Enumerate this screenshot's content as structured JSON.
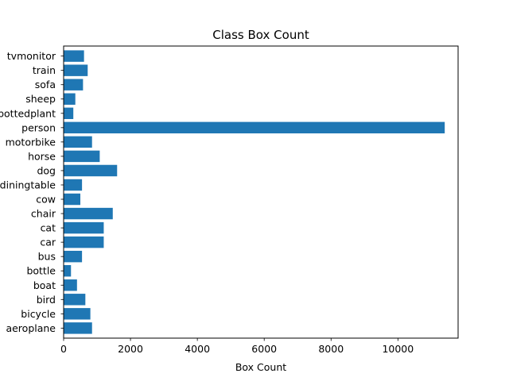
{
  "chart_data": {
    "type": "bar",
    "orientation": "horizontal",
    "title": "Class Box Count",
    "xlabel": "Box Count",
    "ylabel": "",
    "xlim": [
      0,
      11800
    ],
    "xticks": [
      0,
      2000,
      4000,
      6000,
      8000,
      10000
    ],
    "xtick_labels": [
      "0",
      "2000",
      "4000",
      "6000",
      "8000",
      "10000"
    ],
    "categories": [
      "aeroplane",
      "bicycle",
      "bird",
      "boat",
      "bottle",
      "bus",
      "car",
      "cat",
      "chair",
      "cow",
      "diningtable",
      "dog",
      "horse",
      "motorbike",
      "person",
      "pottedplant",
      "sheep",
      "sofa",
      "train",
      "tvmonitor"
    ],
    "values": [
      850,
      800,
      650,
      400,
      220,
      550,
      1200,
      1200,
      1470,
      500,
      550,
      1600,
      1080,
      850,
      11400,
      290,
      350,
      580,
      720,
      610
    ],
    "bar_color": "#1f77b4",
    "grid": false,
    "legend": "none"
  }
}
